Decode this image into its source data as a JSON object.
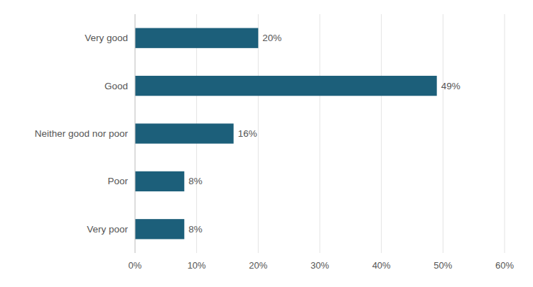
{
  "chart_data": {
    "type": "bar",
    "orientation": "horizontal",
    "categories": [
      "Very good",
      "Good",
      "Neither good nor poor",
      "Poor",
      "Very poor"
    ],
    "values": [
      20,
      49,
      16,
      8,
      8
    ],
    "value_labels": [
      "20%",
      "49%",
      "16%",
      "8%",
      "8%"
    ],
    "data_labels": true,
    "color": "#1c5f7a",
    "xlim": [
      0,
      60
    ],
    "xticks": [
      {
        "value": 0,
        "label": "0%"
      },
      {
        "value": 10,
        "label": "10%"
      },
      {
        "value": 20,
        "label": "20%"
      },
      {
        "value": 30,
        "label": "30%"
      },
      {
        "value": 40,
        "label": "40%"
      },
      {
        "value": 50,
        "label": "50%"
      },
      {
        "value": 60,
        "label": "60%"
      }
    ],
    "grid": true
  }
}
